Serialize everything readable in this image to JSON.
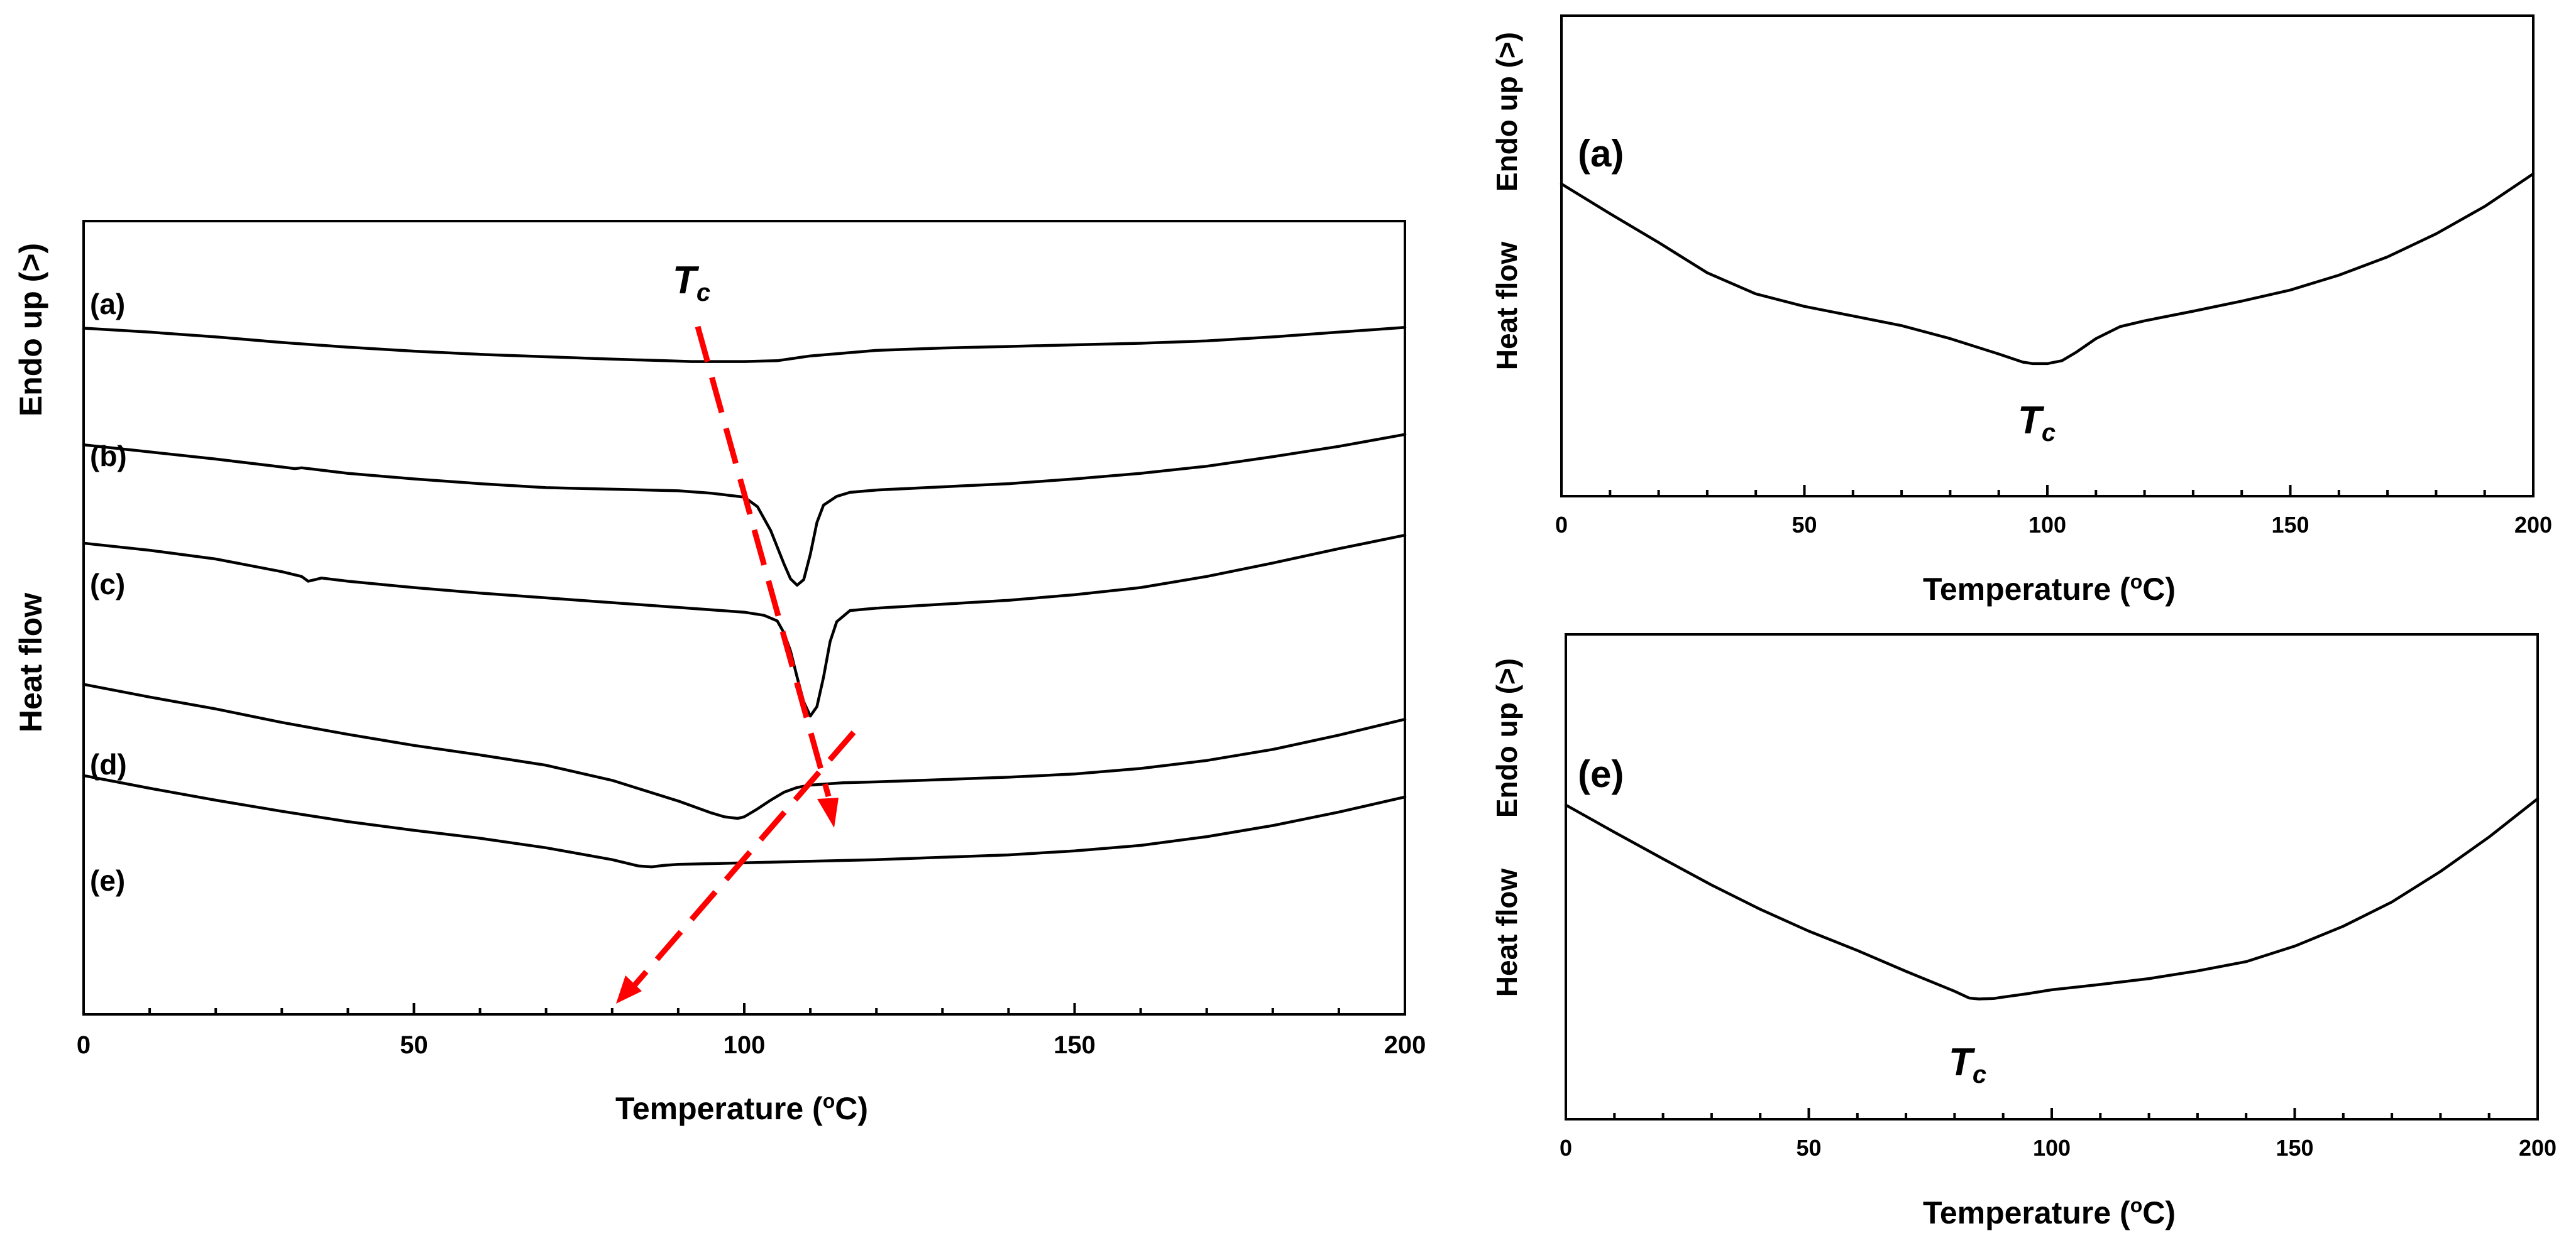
{
  "chart_data": [
    {
      "id": "main",
      "type": "line",
      "title": "",
      "xlabel_prefix": "Temperature (",
      "xlabel_unit_sup": "o",
      "xlabel_suffix": "C)",
      "ylabel_a": "Heat flow",
      "ylabel_b": "Endo up (>)",
      "xlim": [
        0,
        200
      ],
      "xticks": [
        0,
        50,
        100,
        150,
        200
      ],
      "ylim": [
        0,
        100
      ],
      "tc_label": "T",
      "tc_sub": "c",
      "series": [
        {
          "name": "(a)",
          "x": [
            0,
            10,
            20,
            30,
            40,
            50,
            60,
            70,
            80,
            88,
            92,
            95,
            100,
            105,
            110,
            120,
            130,
            140,
            150,
            160,
            170,
            180,
            190,
            200
          ],
          "y": [
            86.5,
            86.0,
            85.4,
            84.7,
            84.1,
            83.6,
            83.2,
            82.9,
            82.6,
            82.4,
            82.3,
            82.3,
            82.3,
            82.4,
            83.0,
            83.7,
            84.0,
            84.2,
            84.4,
            84.6,
            84.9,
            85.4,
            86.0,
            86.6
          ]
        },
        {
          "name": "(b)",
          "x": [
            0,
            10,
            20,
            30,
            32,
            33,
            40,
            50,
            60,
            70,
            80,
            90,
            95,
            100,
            102,
            104,
            106,
            107,
            108,
            109,
            110,
            111,
            112,
            114,
            116,
            120,
            130,
            140,
            150,
            160,
            170,
            180,
            190,
            200
          ],
          "y": [
            71.8,
            70.9,
            70.0,
            69.0,
            68.8,
            68.9,
            68.2,
            67.5,
            66.9,
            66.4,
            66.2,
            66.0,
            65.7,
            65.2,
            64.0,
            61.0,
            56.8,
            54.9,
            54.1,
            54.8,
            58.0,
            62.0,
            64.2,
            65.3,
            65.8,
            66.1,
            66.5,
            66.9,
            67.5,
            68.2,
            69.1,
            70.3,
            71.6,
            73.1
          ]
        },
        {
          "name": "(c)",
          "x": [
            0,
            10,
            20,
            30,
            33,
            34,
            35,
            36,
            40,
            50,
            60,
            70,
            80,
            90,
            100,
            103,
            105,
            106,
            107,
            108,
            109,
            110,
            111,
            112,
            113,
            114,
            116,
            120,
            130,
            140,
            150,
            160,
            170,
            180,
            190,
            200
          ],
          "y": [
            59.4,
            58.5,
            57.4,
            55.8,
            55.2,
            54.6,
            54.8,
            55.0,
            54.6,
            53.8,
            53.1,
            52.5,
            51.9,
            51.3,
            50.7,
            50.3,
            49.6,
            48.1,
            45.8,
            42.5,
            39.4,
            37.6,
            38.8,
            42.5,
            47.0,
            49.5,
            50.9,
            51.2,
            51.7,
            52.2,
            52.9,
            53.8,
            55.2,
            56.9,
            58.7,
            60.4
          ]
        },
        {
          "name": "(d)",
          "x": [
            0,
            10,
            20,
            30,
            40,
            50,
            60,
            70,
            80,
            90,
            95,
            97,
            99,
            100,
            102,
            104,
            106,
            108,
            110,
            115,
            120,
            130,
            140,
            150,
            160,
            170,
            180,
            190,
            200
          ],
          "y": [
            41.6,
            40.0,
            38.5,
            36.8,
            35.3,
            33.9,
            32.7,
            31.4,
            29.5,
            26.9,
            25.4,
            24.9,
            24.7,
            24.9,
            25.9,
            27.0,
            28.0,
            28.6,
            28.9,
            29.2,
            29.3,
            29.6,
            29.9,
            30.3,
            31.0,
            32.0,
            33.4,
            35.2,
            37.2
          ]
        },
        {
          "name": "(e)",
          "x": [
            0,
            10,
            20,
            30,
            40,
            50,
            60,
            70,
            80,
            84,
            86,
            88,
            90,
            95,
            100,
            110,
            120,
            130,
            140,
            150,
            160,
            170,
            180,
            190,
            200
          ],
          "y": [
            30.1,
            28.5,
            27.0,
            25.6,
            24.3,
            23.2,
            22.2,
            21.0,
            19.5,
            18.7,
            18.6,
            18.8,
            18.9,
            19.0,
            19.1,
            19.3,
            19.5,
            19.8,
            20.1,
            20.6,
            21.3,
            22.4,
            23.8,
            25.5,
            27.4
          ]
        }
      ]
    },
    {
      "id": "inset-a",
      "type": "line",
      "title": "",
      "panel_label": "(a)",
      "xlabel_prefix": "Temperature (",
      "xlabel_unit_sup": "o",
      "xlabel_suffix": "C)",
      "ylabel_a": "Heat flow",
      "ylabel_b": "Endo up (>)",
      "xlim": [
        0,
        200
      ],
      "xticks": [
        0,
        50,
        100,
        150,
        200
      ],
      "ylim": [
        0,
        100
      ],
      "tc_label": "T",
      "tc_sub": "c",
      "series": [
        {
          "name": "(a)",
          "x": [
            0,
            10,
            20,
            30,
            40,
            50,
            60,
            70,
            80,
            90,
            95,
            97,
            100,
            103,
            106,
            110,
            115,
            120,
            130,
            140,
            150,
            160,
            170,
            180,
            190,
            200
          ],
          "y": [
            65.0,
            58.8,
            52.8,
            46.5,
            42.1,
            39.5,
            37.5,
            35.5,
            32.8,
            29.6,
            27.9,
            27.6,
            27.6,
            28.2,
            30.0,
            32.8,
            35.3,
            36.5,
            38.5,
            40.6,
            42.9,
            46.0,
            49.8,
            54.6,
            60.3,
            67.1
          ]
        }
      ]
    },
    {
      "id": "inset-e",
      "type": "line",
      "title": "",
      "panel_label": "(e)",
      "xlabel_prefix": "Temperature (",
      "xlabel_unit_sup": "o",
      "xlabel_suffix": "C)",
      "ylabel_a": "Heat flow",
      "ylabel_b": "Endo up (>)",
      "xlim": [
        0,
        200
      ],
      "xticks": [
        0,
        50,
        100,
        150,
        200
      ],
      "ylim": [
        0,
        100
      ],
      "tc_label": "T",
      "tc_sub": "c",
      "series": [
        {
          "name": "(e)",
          "x": [
            0,
            10,
            20,
            30,
            40,
            50,
            60,
            70,
            80,
            83,
            85,
            88,
            90,
            95,
            100,
            110,
            120,
            130,
            140,
            150,
            160,
            170,
            180,
            190,
            200
          ],
          "y": [
            64.8,
            59.2,
            53.7,
            48.3,
            43.3,
            38.8,
            34.8,
            30.5,
            26.4,
            25.0,
            24.8,
            24.9,
            25.2,
            25.9,
            26.7,
            27.8,
            29.0,
            30.6,
            32.5,
            35.7,
            39.8,
            44.8,
            51.1,
            58.2,
            66.1
          ]
        }
      ]
    }
  ]
}
